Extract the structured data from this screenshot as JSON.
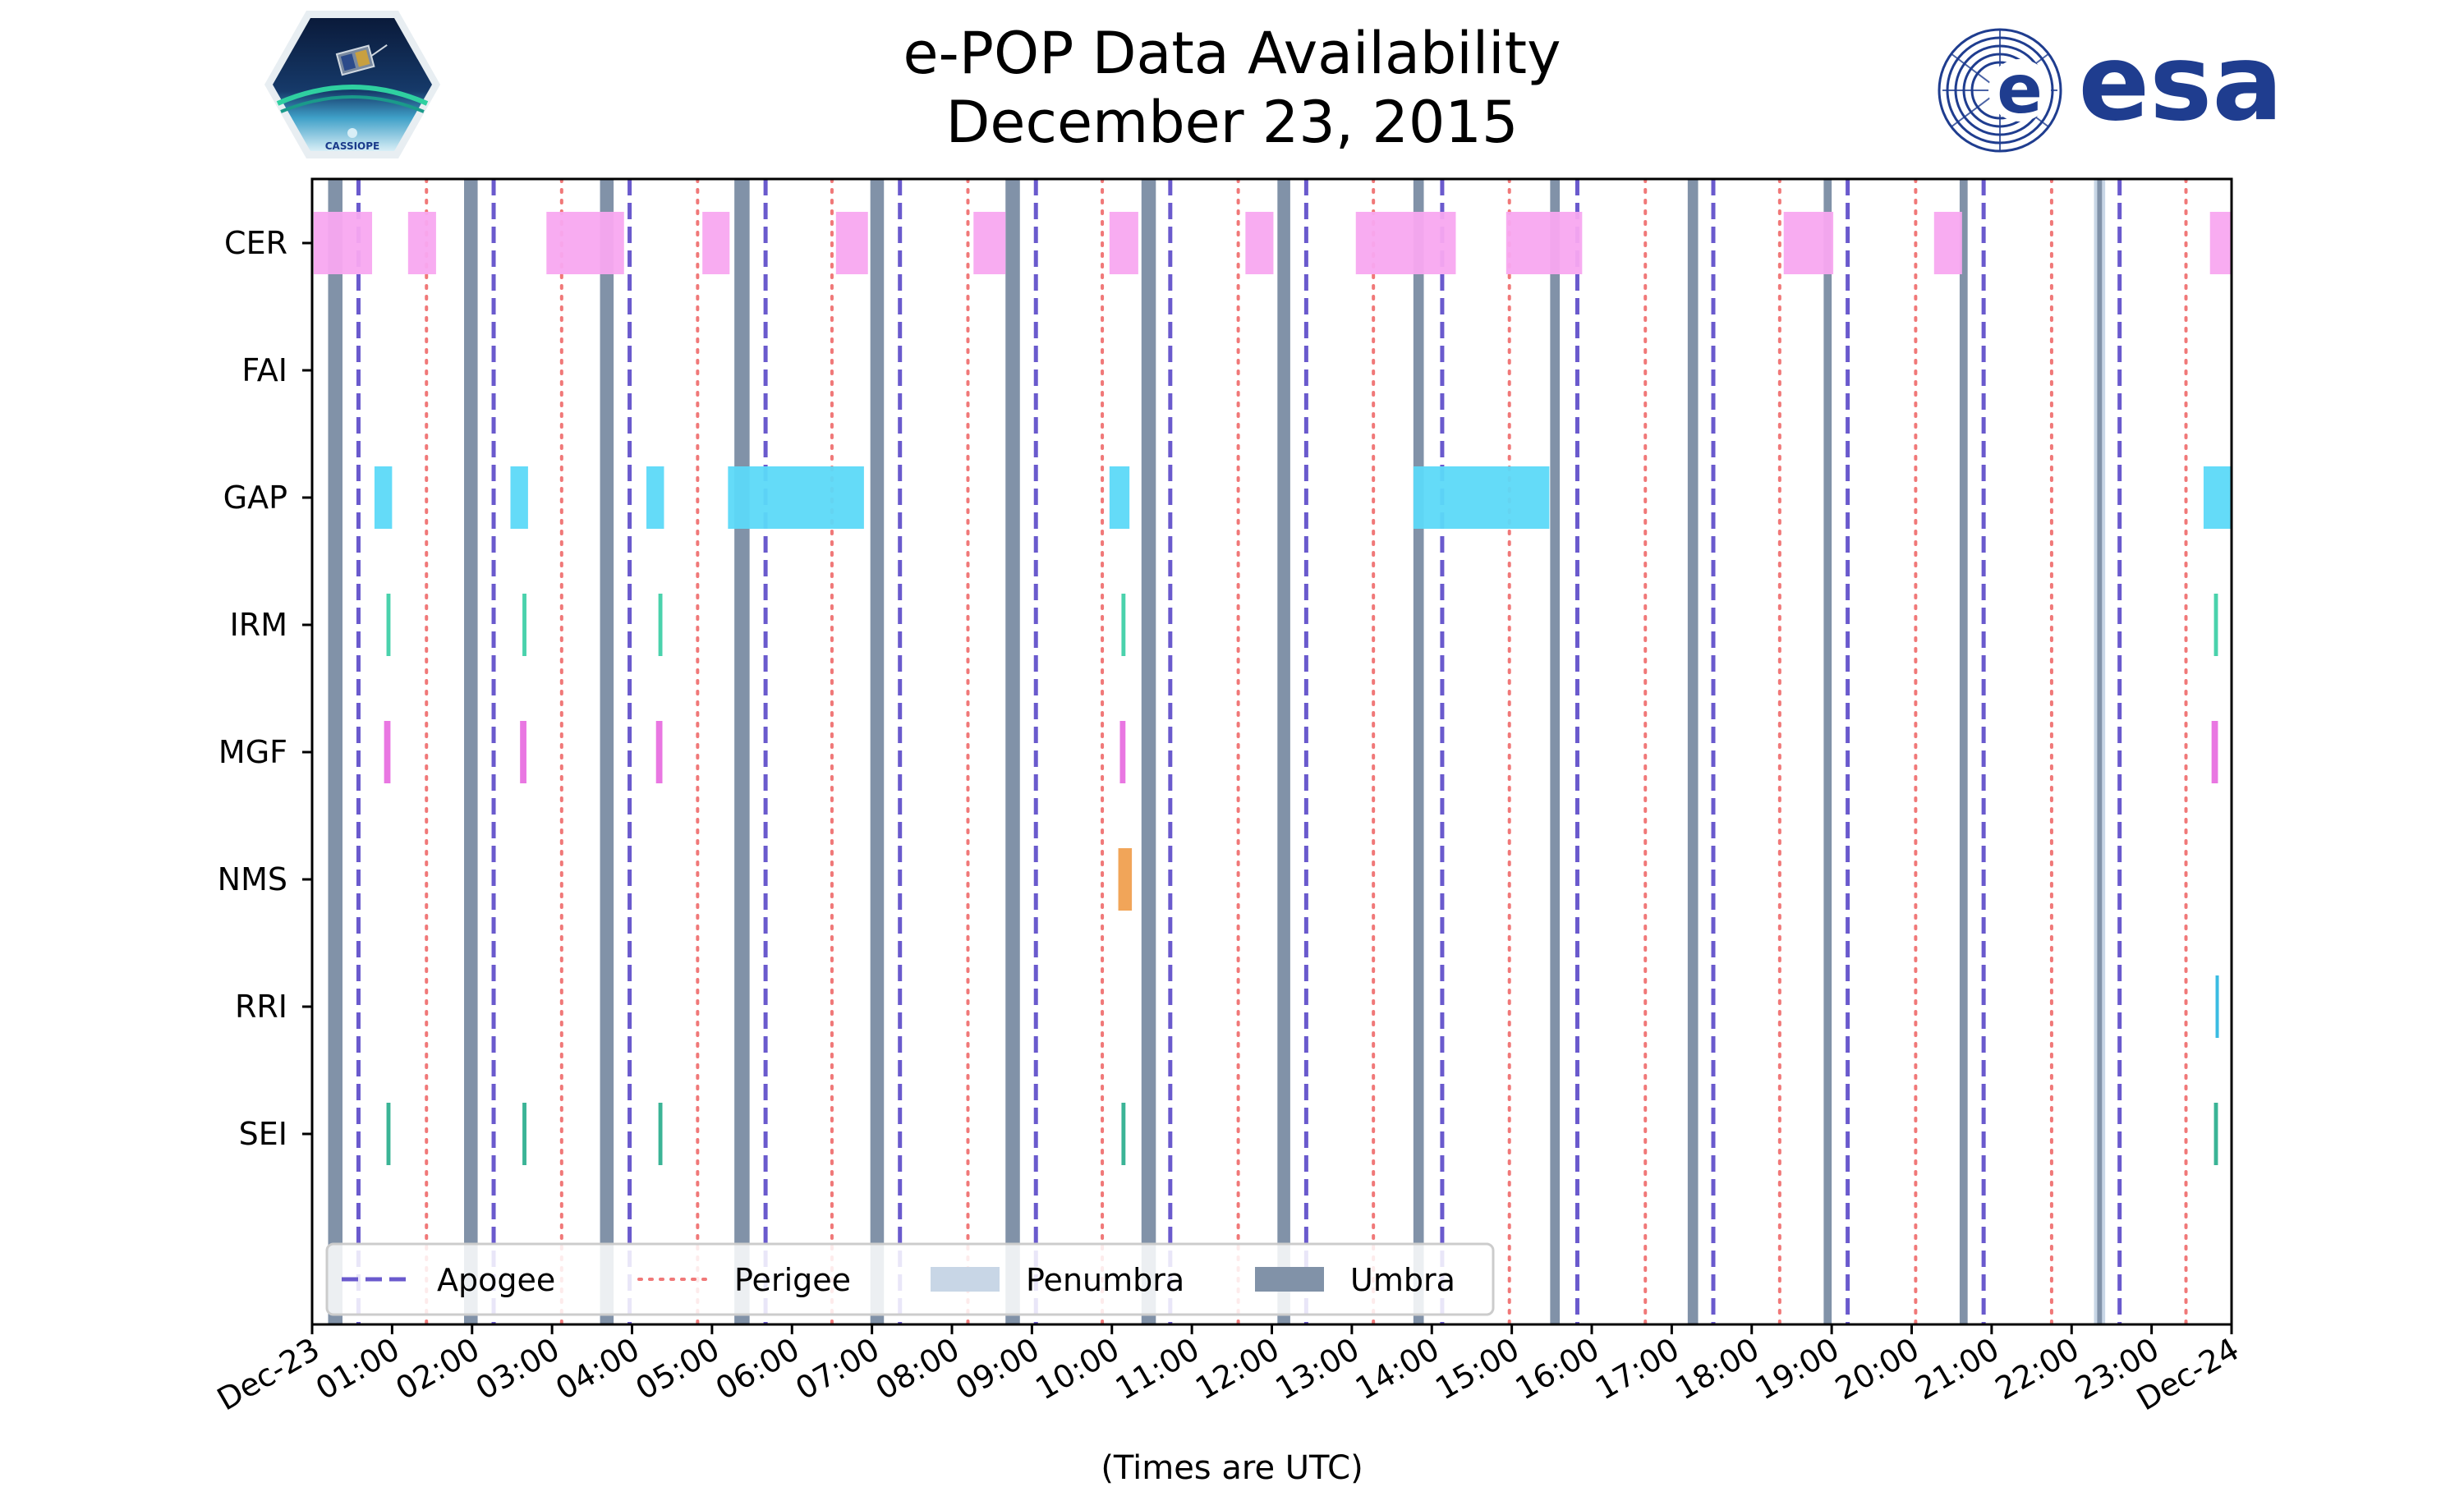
{
  "chart_data": {
    "type": "timeline",
    "title": [
      "e-POP Data Availability",
      "December 23, 2015"
    ],
    "xlabel": "(Times are UTC)",
    "xlim": [
      0,
      24
    ],
    "x_tick_labels": [
      "Dec-23",
      "01:00",
      "02:00",
      "03:00",
      "04:00",
      "05:00",
      "06:00",
      "07:00",
      "08:00",
      "09:00",
      "10:00",
      "11:00",
      "12:00",
      "13:00",
      "14:00",
      "15:00",
      "16:00",
      "17:00",
      "18:00",
      "19:00",
      "20:00",
      "21:00",
      "22:00",
      "23:00",
      "Dec-24"
    ],
    "instruments": [
      "CER",
      "FAI",
      "GAP",
      "IRM",
      "MGF",
      "NMS",
      "RRI",
      "SEI"
    ],
    "apogee_hours": [
      0.58,
      2.27,
      3.97,
      5.67,
      7.35,
      9.05,
      10.73,
      12.43,
      14.13,
      15.82,
      17.52,
      19.2,
      20.9,
      22.6
    ],
    "perigee_hours": [
      1.43,
      3.12,
      4.82,
      6.5,
      8.2,
      9.88,
      11.58,
      13.27,
      14.97,
      16.67,
      18.35,
      20.05,
      21.75,
      23.43
    ],
    "umbra_intervals": [
      [
        0.2,
        0.38
      ],
      [
        1.9,
        2.07
      ],
      [
        3.6,
        3.77
      ],
      [
        5.28,
        5.47
      ],
      [
        6.98,
        7.15
      ],
      [
        8.67,
        8.85
      ],
      [
        10.37,
        10.55
      ],
      [
        12.07,
        12.23
      ],
      [
        13.77,
        13.9
      ],
      [
        15.48,
        15.6
      ],
      [
        17.2,
        17.33
      ],
      [
        18.9,
        19.0
      ],
      [
        20.6,
        20.7
      ],
      [
        22.32,
        22.38
      ]
    ],
    "penumbra_intervals": [
      [
        22.28,
        22.42
      ]
    ],
    "data_intervals": {
      "CER": [
        [
          0.02,
          0.75
        ],
        [
          1.2,
          1.55
        ],
        [
          2.93,
          3.9
        ],
        [
          4.88,
          5.22
        ],
        [
          6.55,
          6.95
        ],
        [
          8.27,
          8.67
        ],
        [
          9.97,
          10.33
        ],
        [
          11.67,
          12.02
        ],
        [
          13.05,
          14.3
        ],
        [
          14.93,
          15.88
        ],
        [
          18.4,
          19.02
        ],
        [
          20.28,
          20.63
        ],
        [
          23.73,
          24.0
        ]
      ],
      "FAI": [],
      "GAP": [
        [
          0.78,
          1.0
        ],
        [
          2.48,
          2.7
        ],
        [
          4.18,
          4.4
        ],
        [
          5.2,
          6.9
        ],
        [
          9.97,
          10.22
        ],
        [
          13.77,
          15.47
        ],
        [
          23.65,
          24.0
        ]
      ],
      "IRM": [
        [
          0.93,
          0.98
        ],
        [
          2.63,
          2.68
        ],
        [
          4.33,
          4.38
        ],
        [
          10.12,
          10.17
        ],
        [
          23.78,
          23.83
        ]
      ],
      "MGF": [
        [
          0.9,
          0.98
        ],
        [
          2.6,
          2.68
        ],
        [
          4.3,
          4.38
        ],
        [
          10.1,
          10.17
        ],
        [
          23.75,
          23.83
        ]
      ],
      "NMS": [
        [
          10.08,
          10.25
        ]
      ],
      "RRI": [
        [
          23.8,
          23.84
        ]
      ],
      "SEI": [
        [
          0.93,
          0.98
        ],
        [
          2.63,
          2.68
        ],
        [
          4.33,
          4.38
        ],
        [
          10.12,
          10.17
        ],
        [
          23.78,
          23.83
        ]
      ]
    },
    "colors": {
      "CER": "#f8a8f0",
      "FAI": "#9cd9a8",
      "GAP": "#5cd9f8",
      "IRM": "#40d0a8",
      "MGF": "#e870e0",
      "NMS": "#f0a050",
      "RRI": "#30b8e0",
      "SEI": "#30b090",
      "apogee": "#6a5acd",
      "perigee": "#f07878",
      "penumbra": "#c8d6e6",
      "umbra": "#8192a8"
    },
    "legend": {
      "position": "lower-left",
      "entries": [
        "Apogee",
        "Perigee",
        "Penumbra",
        "Umbra"
      ]
    }
  },
  "logos": {
    "left": {
      "name": "cassiope",
      "text": "CASSIOPE"
    },
    "right": {
      "name": "esa",
      "text": "esa"
    }
  }
}
